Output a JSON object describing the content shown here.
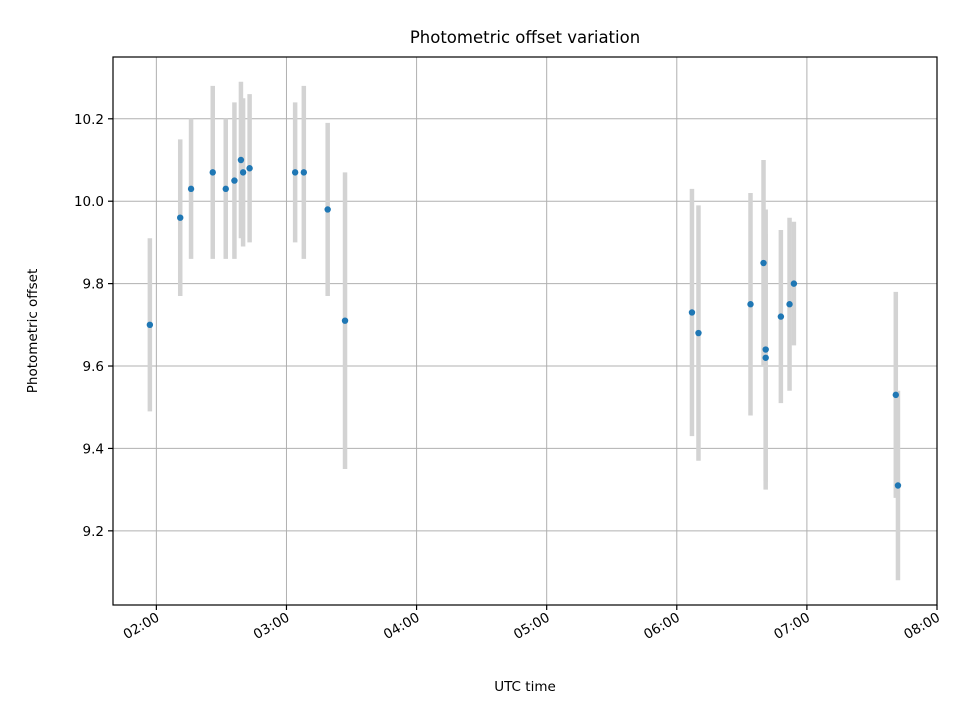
{
  "chart_data": {
    "type": "scatter",
    "title": "Photometric offset variation",
    "xlabel": "UTC time",
    "ylabel": "Photometric offset",
    "xlim": [
      "01:40",
      "08:00"
    ],
    "ylim": [
      9.02,
      10.35
    ],
    "x_ticks": [
      "02:00",
      "03:00",
      "04:00",
      "05:00",
      "06:00",
      "07:00",
      "08:00"
    ],
    "y_ticks": [
      "9.2",
      "9.4",
      "9.6",
      "9.8",
      "10.0",
      "10.2"
    ],
    "grid": true,
    "colors": {
      "points": "#1f77b4",
      "error_bars": "#d3d3d3"
    },
    "series": [
      {
        "x": [
          "01:57",
          "02:11",
          "02:16",
          "02:26",
          "02:32",
          "02:36",
          "02:39",
          "02:40",
          "02:43",
          "03:04",
          "03:08",
          "03:19",
          "03:27",
          "06:07",
          "06:10",
          "06:34",
          "06:40",
          "06:41",
          "06:41",
          "06:48",
          "06:52",
          "06:54",
          "07:41",
          "07:42"
        ],
        "y": [
          9.7,
          9.96,
          10.03,
          10.07,
          10.03,
          10.05,
          10.1,
          10.07,
          10.08,
          10.07,
          10.07,
          9.98,
          9.71,
          9.73,
          9.68,
          9.75,
          9.85,
          9.64,
          9.62,
          9.72,
          9.75,
          9.8,
          9.53,
          9.31
        ],
        "yerr": [
          0.21,
          0.19,
          0.17,
          0.21,
          0.17,
          0.19,
          0.19,
          0.18,
          0.18,
          0.17,
          0.21,
          0.21,
          0.36,
          0.3,
          0.31,
          0.27,
          0.25,
          0.34,
          0.3,
          0.21,
          0.21,
          0.15,
          0.25,
          0.23
        ]
      }
    ]
  }
}
